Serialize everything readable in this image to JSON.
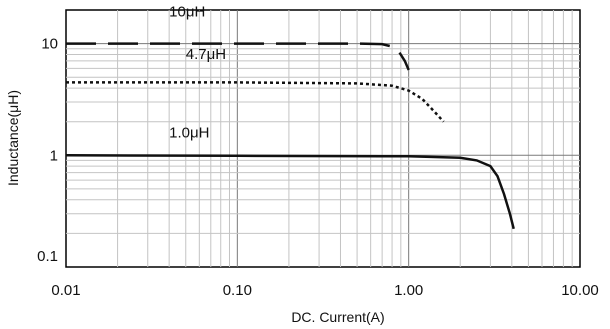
{
  "chart_data": {
    "type": "line",
    "title": "",
    "xlabel": "DC. Current(A)",
    "ylabel": "Inductance(μH)",
    "xscale": "log",
    "yscale": "log",
    "xlim": [
      0.01,
      10
    ],
    "ylim": [
      0.1,
      20
    ],
    "grid": true,
    "x_tick_labels": [
      "0.01",
      "0.10",
      "1.00",
      "10.00"
    ],
    "x_tick_values": [
      0.01,
      0.1,
      1,
      10
    ],
    "y_tick_labels": [
      "0.1",
      "1",
      "10"
    ],
    "y_tick_values": [
      0.1,
      1,
      10
    ],
    "series": [
      {
        "name": "10μH",
        "line_style": "long-dash",
        "color": "#111111",
        "x": [
          0.01,
          0.1,
          0.5,
          0.7,
          0.8,
          0.88,
          0.95,
          1.0
        ],
        "y": [
          10,
          10,
          10,
          9.9,
          9.4,
          8.4,
          7.0,
          5.8
        ]
      },
      {
        "name": "4.7μH",
        "line_style": "wavy-dotted",
        "color": "#111111",
        "x": [
          0.01,
          0.1,
          0.5,
          0.8,
          1.0,
          1.2,
          1.4,
          1.6
        ],
        "y": [
          4.5,
          4.5,
          4.4,
          4.2,
          3.8,
          3.2,
          2.5,
          2.0
        ]
      },
      {
        "name": "1.0μH",
        "line_style": "solid",
        "color": "#111111",
        "x": [
          0.01,
          0.1,
          1.0,
          2.0,
          2.5,
          3.0,
          3.3,
          3.6,
          3.9,
          4.1
        ],
        "y": [
          1.0,
          0.99,
          0.98,
          0.95,
          0.9,
          0.8,
          0.65,
          0.45,
          0.3,
          0.22
        ]
      }
    ]
  }
}
